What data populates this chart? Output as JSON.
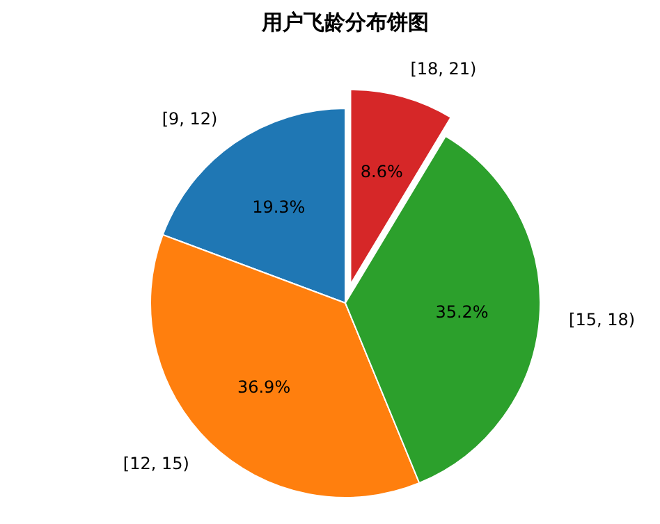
{
  "chart_data": {
    "type": "pie",
    "title": "用户飞龄分布饼图",
    "categories": [
      "[9, 12)",
      "[12, 15)",
      "[15, 18)",
      "[18, 21)"
    ],
    "values": [
      19.3,
      36.9,
      35.2,
      8.6
    ],
    "colors": [
      "#1f77b4",
      "#ff7f0e",
      "#2ca02c",
      "#d62728"
    ],
    "value_labels": [
      "19.3%",
      "36.9%",
      "35.2%",
      "8.6%"
    ],
    "legend": false
  }
}
